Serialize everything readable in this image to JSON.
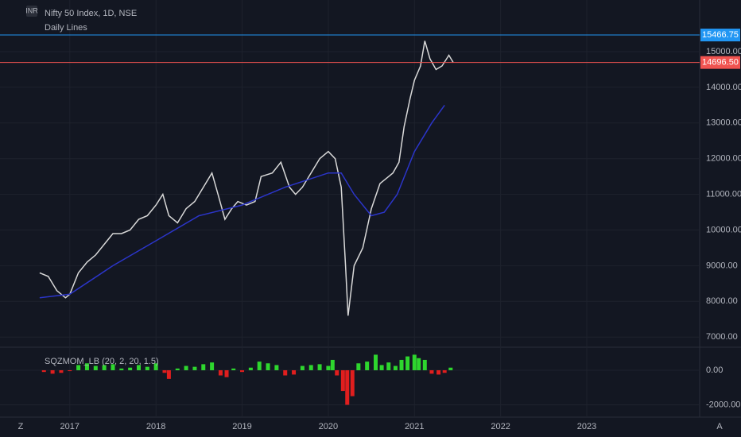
{
  "chart_data": [
    {
      "type": "line",
      "title": "Nifty 50 Index, 1D, NSE",
      "subtitle": "Daily Lines",
      "currency": "INR",
      "xlim": [
        2016.19,
        2024.31
      ],
      "xticks": [
        2017,
        2018,
        2019,
        2020,
        2021,
        2022,
        2023
      ],
      "ylim": [
        6715,
        16448
      ],
      "yticks": [
        {
          "value": 7000,
          "label": "7000.00"
        },
        {
          "value": 8000,
          "label": "8000.00"
        },
        {
          "value": 9000,
          "label": "9000.00"
        },
        {
          "value": 10000,
          "label": "10000.00"
        },
        {
          "value": 11000,
          "label": "11000.00"
        },
        {
          "value": 12000,
          "label": "12000.00"
        },
        {
          "value": 13000,
          "label": "13000.00"
        },
        {
          "value": 14000,
          "label": "14000.00"
        },
        {
          "value": 15000,
          "label": "15000.00"
        }
      ],
      "grid": true,
      "series": [
        {
          "color": "#d8d8d8",
          "x": [
            2016.65,
            2016.75,
            2016.85,
            2016.95,
            2017.0,
            2017.1,
            2017.2,
            2017.3,
            2017.4,
            2017.5,
            2017.6,
            2017.7,
            2017.8,
            2017.9,
            2018.0,
            2018.08,
            2018.15,
            2018.25,
            2018.35,
            2018.45,
            2018.55,
            2018.65,
            2018.72,
            2018.8,
            2018.88,
            2018.95,
            2019.05,
            2019.15,
            2019.22,
            2019.35,
            2019.45,
            2019.55,
            2019.62,
            2019.7,
            2019.8,
            2019.9,
            2020.0,
            2020.08,
            2020.15,
            2020.2,
            2020.23,
            2020.3,
            2020.4,
            2020.5,
            2020.6,
            2020.7,
            2020.75,
            2020.82,
            2020.88,
            2020.95,
            2021.0,
            2021.07,
            2021.12,
            2021.18,
            2021.25,
            2021.32,
            2021.4,
            2021.45
          ],
          "values": [
            8800,
            8700,
            8300,
            8100,
            8200,
            8800,
            9100,
            9300,
            9600,
            9900,
            9900,
            10000,
            10300,
            10400,
            10700,
            11000,
            10400,
            10200,
            10600,
            10800,
            11200,
            11600,
            11000,
            10300,
            10600,
            10800,
            10700,
            10800,
            11500,
            11600,
            11900,
            11200,
            11000,
            11200,
            11600,
            12000,
            12200,
            12000,
            11200,
            9000,
            7600,
            9000,
            9500,
            10600,
            11300,
            11500,
            11600,
            11900,
            12900,
            13700,
            14200,
            14600,
            15300,
            14800,
            14500,
            14600,
            14900,
            14700
          ]
        },
        {
          "color": "#2b35c9",
          "x": [
            2016.65,
            2017.0,
            2017.5,
            2018.0,
            2018.5,
            2019.0,
            2019.5,
            2020.0,
            2020.15,
            2020.3,
            2020.5,
            2020.65,
            2020.8,
            2021.0,
            2021.2,
            2021.35
          ],
          "values": [
            8100,
            8200,
            9000,
            9700,
            10400,
            10700,
            11200,
            11600,
            11600,
            11000,
            10400,
            10500,
            11000,
            12200,
            13000,
            13500
          ]
        }
      ],
      "price_lines": [
        {
          "value": 15466.75,
          "color": "#2196f3"
        },
        {
          "value": 14696.5,
          "label": "14696.50",
          "color": "#f05350"
        }
      ],
      "toolbar": {
        "left": "Z",
        "right": "A"
      }
    },
    {
      "type": "histogram",
      "title": "SQZMOM_LB (20, 2, 20, 1.5)",
      "xlim": [
        2016.19,
        2024.31
      ],
      "ylim": [
        -2714,
        1333
      ],
      "yticks": [
        {
          "value": 0,
          "label": "0.00"
        },
        {
          "value": -2000,
          "label": "-2000.00"
        }
      ],
      "pos_color": "#2ed62e",
      "neg_color": "#e01e1e",
      "x": [
        2016.7,
        2016.8,
        2016.9,
        2017.0,
        2017.1,
        2017.2,
        2017.3,
        2017.4,
        2017.5,
        2017.6,
        2017.7,
        2017.8,
        2017.9,
        2018.0,
        2018.1,
        2018.15,
        2018.25,
        2018.35,
        2018.45,
        2018.55,
        2018.65,
        2018.75,
        2018.82,
        2018.9,
        2019.0,
        2019.1,
        2019.2,
        2019.3,
        2019.4,
        2019.5,
        2019.6,
        2019.7,
        2019.8,
        2019.9,
        2020.0,
        2020.05,
        2020.1,
        2020.17,
        2020.22,
        2020.28,
        2020.35,
        2020.45,
        2020.55,
        2020.62,
        2020.7,
        2020.78,
        2020.85,
        2020.92,
        2021.0,
        2021.05,
        2021.12,
        2021.2,
        2021.28,
        2021.35,
        2021.42
      ],
      "values": [
        -100,
        -200,
        -150,
        -50,
        300,
        400,
        250,
        300,
        350,
        100,
        150,
        300,
        200,
        400,
        -150,
        -500,
        100,
        250,
        200,
        350,
        450,
        -300,
        -400,
        100,
        -100,
        150,
        500,
        400,
        300,
        -300,
        -250,
        250,
        300,
        350,
        250,
        600,
        -300,
        -1200,
        -2000,
        -1500,
        400,
        500,
        900,
        300,
        450,
        250,
        600,
        800,
        900,
        700,
        600,
        -200,
        -250,
        -150,
        150
      ]
    }
  ]
}
